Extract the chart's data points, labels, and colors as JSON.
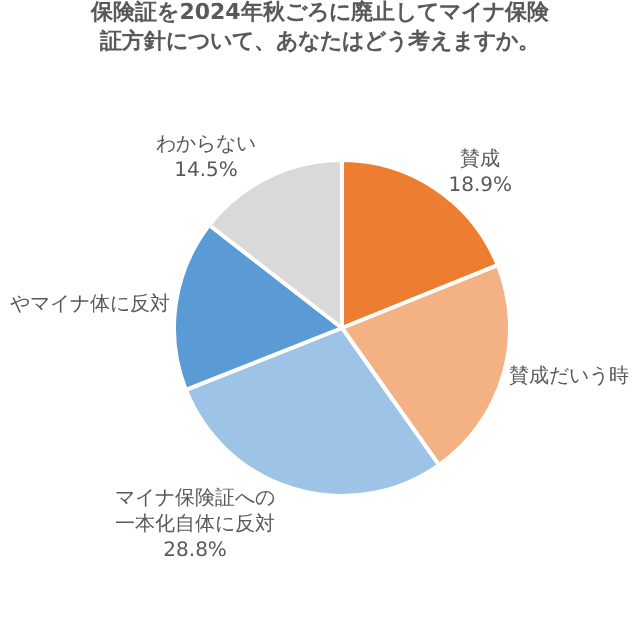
{
  "chart_data": {
    "type": "pie",
    "title": "保険証を2024年秋ごろに廃止してマイナ保険証方針について、あなたはどう考えますか。",
    "categories": [
      "賛成",
      "賛成だいう時",
      "マイナ保険証への一本化自体に反対",
      "やマイナ体に反対",
      "わからない"
    ],
    "values": [
      18.9,
      21.3,
      28.8,
      16.5,
      14.5
    ],
    "value_labels": [
      "18.9%",
      null,
      "28.8%",
      null,
      "14.5%"
    ],
    "colors": [
      "#ed7d31",
      "#f4b183",
      "#9dc3e6",
      "#5b9bd5",
      "#d9d9d9"
    ],
    "legend": false
  }
}
